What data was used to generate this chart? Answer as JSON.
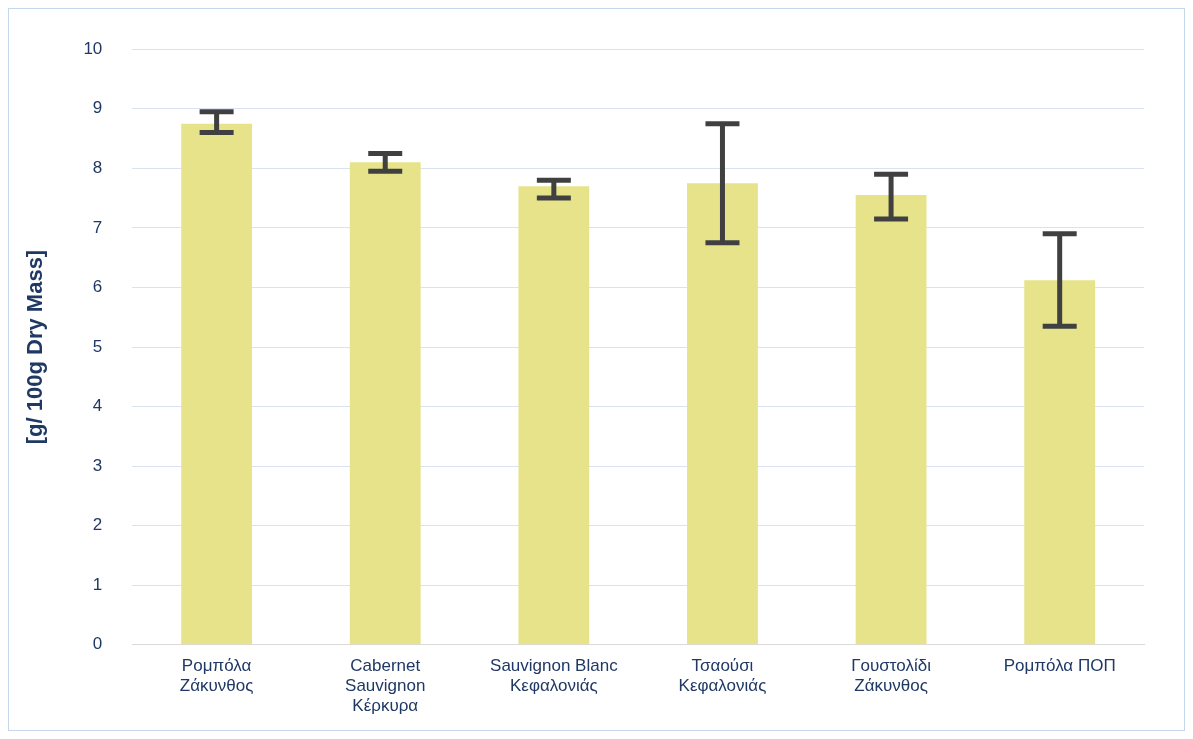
{
  "chart_data": {
    "type": "bar",
    "ylabel": "[g/ 100g Dry Mass]",
    "categories": [
      "Ρομπόλα Ζάκυνθος",
      "Cabernet Sauvignon Κέρκυρα",
      "Sauvignon Blanc Κεφαλονιάς",
      "Τσαούσι Κεφαλονιάς",
      "Γουστολίδι Ζάκυνθος",
      "Ρομπόλα ΠΟΠ"
    ],
    "values": [
      8.75,
      8.1,
      7.7,
      7.75,
      7.55,
      6.12
    ],
    "errors": [
      [
        8.6,
        8.95
      ],
      [
        7.95,
        8.25
      ],
      [
        7.5,
        7.8
      ],
      [
        6.75,
        8.75
      ],
      [
        7.15,
        7.9
      ],
      [
        5.35,
        6.9
      ]
    ],
    "color": "#e6e38a",
    "ylim": [
      0,
      10
    ],
    "yticks": [
      0,
      1,
      2,
      3,
      4,
      5,
      6,
      7,
      8,
      9,
      10
    ],
    "grid": "y"
  }
}
